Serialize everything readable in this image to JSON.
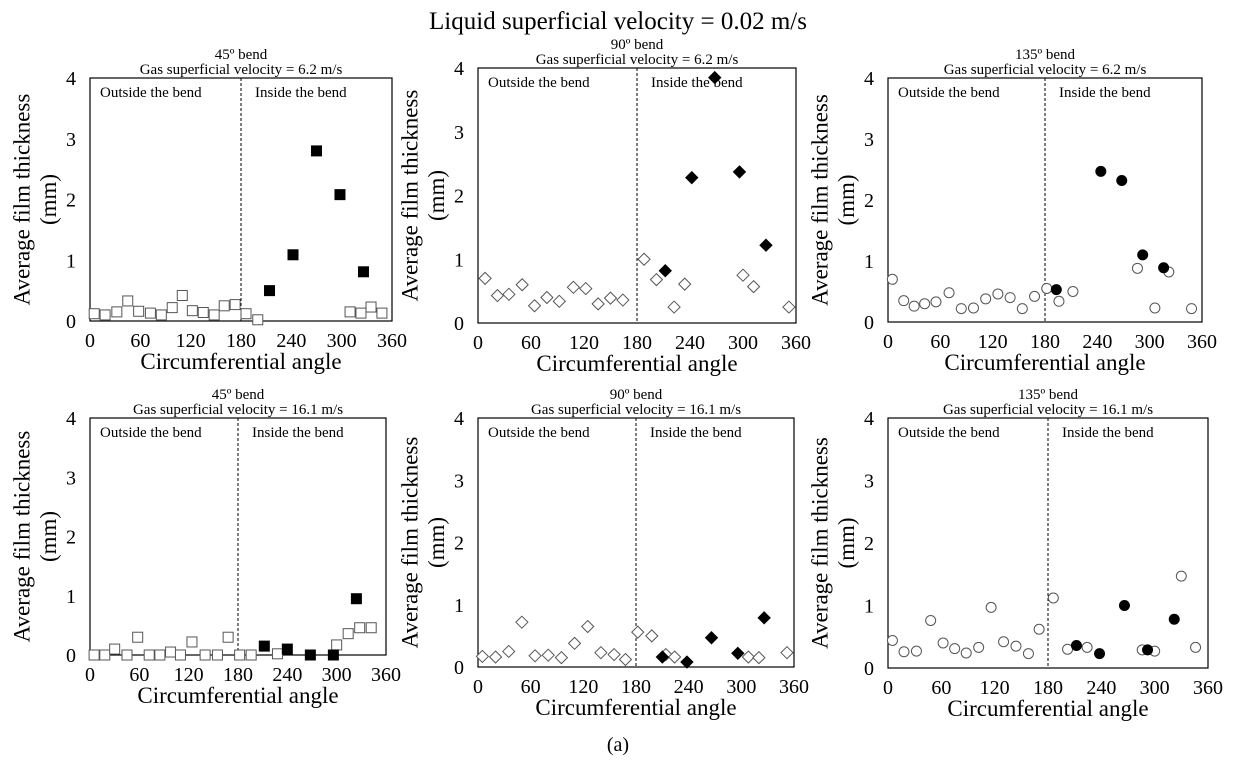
{
  "title": "Liquid superficial velocity = 0.02 m/s",
  "caption": "(a)",
  "chart_data": [
    {
      "type": "scatter",
      "title": "45º bend",
      "subtitle": "Gas superficial velocity = 6.2 m/s",
      "xlabel": "Circumferential angle",
      "ylabel": "Average film thickness (mm)",
      "xlim": [
        0,
        360
      ],
      "ylim": [
        0,
        4
      ],
      "xticks": [
        0,
        60,
        120,
        180,
        240,
        300,
        360
      ],
      "yticks": [
        0,
        1,
        2,
        3,
        4
      ],
      "divider_x": 180,
      "region_labels": [
        "Outside the bend",
        "Inside the bend"
      ],
      "marker": "square",
      "series": [
        {
          "fill": "open",
          "points": [
            [
              5,
              0.12
            ],
            [
              18,
              0.1
            ],
            [
              32,
              0.15
            ],
            [
              45,
              0.33
            ],
            [
              58,
              0.16
            ],
            [
              72,
              0.13
            ],
            [
              85,
              0.1
            ],
            [
              98,
              0.22
            ],
            [
              110,
              0.42
            ],
            [
              122,
              0.17
            ],
            [
              135,
              0.14
            ],
            [
              148,
              0.1
            ],
            [
              160,
              0.25
            ],
            [
              173,
              0.27
            ],
            [
              186,
              0.12
            ],
            [
              200,
              0.02
            ],
            [
              310,
              0.15
            ],
            [
              323,
              0.13
            ],
            [
              335,
              0.23
            ],
            [
              348,
              0.13
            ]
          ]
        },
        {
          "fill": "solid",
          "points": [
            [
              214,
              0.5
            ],
            [
              242,
              1.09
            ],
            [
              270,
              2.8
            ],
            [
              298,
              2.08
            ],
            [
              326,
              0.81
            ]
          ]
        }
      ]
    },
    {
      "type": "scatter",
      "title": "90º bend",
      "subtitle": "Gas superficial velocity = 6.2 m/s",
      "xlabel": "Circumferential angle",
      "ylabel": "Average film thickness (mm)",
      "xlim": [
        0,
        360
      ],
      "ylim": [
        0,
        4
      ],
      "xticks": [
        0,
        60,
        120,
        180,
        240,
        300,
        360
      ],
      "yticks": [
        0,
        1,
        2,
        3,
        4
      ],
      "divider_x": 180,
      "region_labels": [
        "Outside the bend",
        "Inside the bend"
      ],
      "marker": "diamond",
      "series": [
        {
          "fill": "open",
          "points": [
            [
              8,
              0.7
            ],
            [
              22,
              0.43
            ],
            [
              35,
              0.45
            ],
            [
              50,
              0.6
            ],
            [
              64,
              0.27
            ],
            [
              78,
              0.4
            ],
            [
              92,
              0.34
            ],
            [
              108,
              0.56
            ],
            [
              122,
              0.54
            ],
            [
              136,
              0.3
            ],
            [
              150,
              0.39
            ],
            [
              164,
              0.36
            ],
            [
              188,
              1.0
            ],
            [
              202,
              0.68
            ],
            [
              222,
              0.25
            ],
            [
              234,
              0.61
            ],
            [
              300,
              0.75
            ],
            [
              312,
              0.57
            ],
            [
              352,
              0.25
            ]
          ]
        },
        {
          "fill": "solid",
          "points": [
            [
              212,
              0.82
            ],
            [
              242,
              2.28
            ],
            [
              268,
              3.85
            ],
            [
              296,
              2.37
            ],
            [
              326,
              1.22
            ]
          ]
        }
      ]
    },
    {
      "type": "scatter",
      "title": "135º bend",
      "subtitle": "Gas superficial velocity = 6.2 m/s",
      "xlabel": "Circumferential angle",
      "ylabel": "Average film thickness (mm)",
      "xlim": [
        0,
        360
      ],
      "ylim": [
        0,
        4
      ],
      "xticks": [
        0,
        60,
        120,
        180,
        240,
        300,
        360
      ],
      "yticks": [
        0,
        1,
        2,
        3,
        4
      ],
      "divider_x": 180,
      "region_labels": [
        "Outside the bend",
        "Inside the bend"
      ],
      "marker": "circle",
      "series": [
        {
          "fill": "open",
          "points": [
            [
              5,
              0.7
            ],
            [
              18,
              0.35
            ],
            [
              30,
              0.26
            ],
            [
              42,
              0.3
            ],
            [
              55,
              0.33
            ],
            [
              70,
              0.48
            ],
            [
              84,
              0.22
            ],
            [
              98,
              0.23
            ],
            [
              112,
              0.38
            ],
            [
              126,
              0.46
            ],
            [
              140,
              0.4
            ],
            [
              154,
              0.22
            ],
            [
              168,
              0.42
            ],
            [
              182,
              0.55
            ],
            [
              196,
              0.34
            ],
            [
              212,
              0.5
            ],
            [
              286,
              0.88
            ],
            [
              306,
              0.23
            ],
            [
              322,
              0.82
            ],
            [
              348,
              0.22
            ]
          ]
        },
        {
          "fill": "solid",
          "points": [
            [
              193,
              0.53
            ],
            [
              244,
              2.47
            ],
            [
              268,
              2.32
            ],
            [
              292,
              1.1
            ],
            [
              316,
              0.89
            ]
          ]
        }
      ]
    },
    {
      "type": "scatter",
      "title": "45º bend",
      "subtitle": "Gas superficial velocity = 16.1 m/s",
      "xlabel": "Circumferential angle",
      "ylabel": "Average film thickness (mm)",
      "xlim": [
        0,
        360
      ],
      "ylim": [
        0,
        4
      ],
      "xticks": [
        0,
        60,
        120,
        180,
        240,
        300,
        360
      ],
      "yticks": [
        0,
        1,
        2,
        3,
        4
      ],
      "divider_x": 180,
      "region_labels": [
        "Outside the bend",
        "Inside the bend"
      ],
      "marker": "square",
      "series": [
        {
          "fill": "open",
          "points": [
            [
              5,
              0.0
            ],
            [
              18,
              0.0
            ],
            [
              30,
              0.1
            ],
            [
              45,
              0.0
            ],
            [
              58,
              0.3
            ],
            [
              72,
              0.0
            ],
            [
              85,
              0.0
            ],
            [
              98,
              0.05
            ],
            [
              110,
              0.0
            ],
            [
              124,
              0.22
            ],
            [
              140,
              0.0
            ],
            [
              155,
              0.0
            ],
            [
              168,
              0.3
            ],
            [
              182,
              0.0
            ],
            [
              196,
              0.0
            ],
            [
              228,
              0.02
            ],
            [
              300,
              0.17
            ],
            [
              314,
              0.36
            ],
            [
              328,
              0.46
            ],
            [
              342,
              0.46
            ]
          ]
        },
        {
          "fill": "solid",
          "points": [
            [
              212,
              0.15
            ],
            [
              240,
              0.1
            ],
            [
              268,
              0.0
            ],
            [
              296,
              0.0
            ],
            [
              324,
              0.95
            ]
          ]
        }
      ]
    },
    {
      "type": "scatter",
      "title": "90º bend",
      "subtitle": "Gas superficial velocity = 16.1 m/s",
      "xlabel": "Circumferential angle",
      "ylabel": "Average film thickness (mm)",
      "xlim": [
        0,
        360
      ],
      "ylim": [
        0,
        4
      ],
      "xticks": [
        0,
        60,
        120,
        180,
        240,
        300,
        360
      ],
      "yticks": [
        0,
        1,
        2,
        3,
        4
      ],
      "divider_x": 180,
      "region_labels": [
        "Outside the bend",
        "Inside the bend"
      ],
      "marker": "diamond",
      "series": [
        {
          "fill": "open",
          "points": [
            [
              5,
              0.17
            ],
            [
              20,
              0.16
            ],
            [
              35,
              0.25
            ],
            [
              50,
              0.72
            ],
            [
              65,
              0.18
            ],
            [
              80,
              0.19
            ],
            [
              95,
              0.15
            ],
            [
              110,
              0.38
            ],
            [
              125,
              0.65
            ],
            [
              140,
              0.23
            ],
            [
              155,
              0.2
            ],
            [
              168,
              0.12
            ],
            [
              182,
              0.56
            ],
            [
              198,
              0.5
            ],
            [
              214,
              0.2
            ],
            [
              224,
              0.16
            ],
            [
              308,
              0.16
            ],
            [
              320,
              0.15
            ],
            [
              352,
              0.23
            ]
          ]
        },
        {
          "fill": "solid",
          "points": [
            [
              210,
              0.16
            ],
            [
              238,
              0.08
            ],
            [
              266,
              0.47
            ],
            [
              296,
              0.22
            ],
            [
              326,
              0.79
            ]
          ]
        }
      ]
    },
    {
      "type": "scatter",
      "title": "135º bend",
      "subtitle": "Gas superficial velocity = 16.1 m/s",
      "xlabel": "Circumferential angle",
      "ylabel": "Average film thickness (mm)",
      "xlim": [
        0,
        360
      ],
      "ylim": [
        0,
        4
      ],
      "xticks": [
        0,
        60,
        120,
        180,
        240,
        300,
        360
      ],
      "yticks": [
        0,
        1,
        2,
        3,
        4
      ],
      "divider_x": 180,
      "region_labels": [
        "Outside the bend",
        "Inside the bend"
      ],
      "marker": "circle",
      "series": [
        {
          "fill": "open",
          "points": [
            [
              5,
              0.44
            ],
            [
              18,
              0.26
            ],
            [
              32,
              0.27
            ],
            [
              48,
              0.76
            ],
            [
              62,
              0.4
            ],
            [
              75,
              0.31
            ],
            [
              88,
              0.24
            ],
            [
              102,
              0.33
            ],
            [
              116,
              0.97
            ],
            [
              130,
              0.42
            ],
            [
              144,
              0.35
            ],
            [
              158,
              0.23
            ],
            [
              170,
              0.62
            ],
            [
              186,
              1.12
            ],
            [
              202,
              0.3
            ],
            [
              224,
              0.33
            ],
            [
              286,
              0.29
            ],
            [
              300,
              0.27
            ],
            [
              330,
              1.47
            ],
            [
              346,
              0.33
            ]
          ]
        },
        {
          "fill": "solid",
          "points": [
            [
              212,
              0.36
            ],
            [
              238,
              0.23
            ],
            [
              266,
              1.0
            ],
            [
              292,
              0.29
            ],
            [
              322,
              0.78
            ]
          ]
        }
      ]
    }
  ]
}
